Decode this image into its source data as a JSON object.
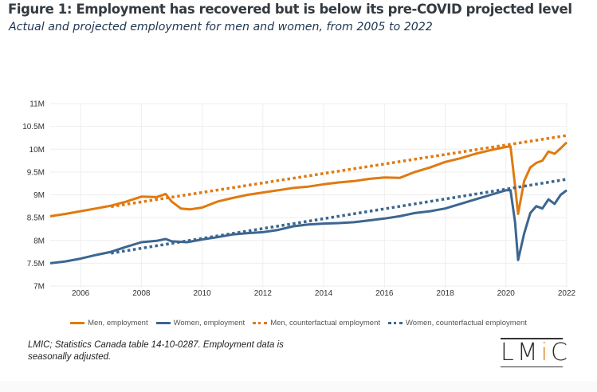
{
  "header": {
    "title": "Figure 1: Employment has recovered but is below its pre-COVID projected level",
    "subtitle": "Actual and projected employment for men and women, from 2005 to 2022"
  },
  "footer": {
    "source": "LMIC; Statistics Canada table 14-10-0287. Employment data is seasonally adjusted.",
    "logo": {
      "l": "LM",
      "i": "i",
      "c": "C"
    }
  },
  "colors": {
    "men": "#e07a10",
    "women": "#3c6690",
    "grid": "#eeeeee"
  },
  "chart_data": {
    "type": "line",
    "title": "Figure 1: Employment has recovered but is below its pre-COVID projected level",
    "subtitle": "Actual and projected employment for men and women, from 2005 to 2022",
    "xlabel": "",
    "ylabel": "",
    "xlim": [
      2005,
      2022
    ],
    "ylim": [
      7000000,
      11000000
    ],
    "x_ticks": [
      "2006",
      "2008",
      "2010",
      "2012",
      "2014",
      "2016",
      "2018",
      "2020",
      "2022"
    ],
    "y_ticks": [
      "7M",
      "7.5M",
      "8M",
      "8.5M",
      "9M",
      "9.5M",
      "10M",
      "10.5M",
      "11M"
    ],
    "grid": true,
    "legend_position": "bottom",
    "series": [
      {
        "name": "Men, employment",
        "style": "solid",
        "color": "#e07a10",
        "x": [
          2005.0,
          2005.5,
          2006.0,
          2006.5,
          2007.0,
          2007.5,
          2008.0,
          2008.5,
          2008.8,
          2009.0,
          2009.3,
          2009.6,
          2010.0,
          2010.5,
          2011.0,
          2011.5,
          2012.0,
          2012.5,
          2013.0,
          2013.5,
          2014.0,
          2014.5,
          2015.0,
          2015.5,
          2016.0,
          2016.5,
          2017.0,
          2017.5,
          2018.0,
          2018.5,
          2019.0,
          2019.5,
          2020.0,
          2020.15,
          2020.3,
          2020.4,
          2020.6,
          2020.8,
          2021.0,
          2021.2,
          2021.4,
          2021.6,
          2021.8,
          2022.0
        ],
        "values": [
          8530000,
          8580000,
          8640000,
          8700000,
          8760000,
          8850000,
          8960000,
          8950000,
          9020000,
          8850000,
          8700000,
          8680000,
          8720000,
          8850000,
          8930000,
          9000000,
          9050000,
          9100000,
          9150000,
          9180000,
          9230000,
          9270000,
          9300000,
          9350000,
          9380000,
          9370000,
          9500000,
          9600000,
          9720000,
          9800000,
          9900000,
          9980000,
          10050000,
          10060000,
          9200000,
          8580000,
          9300000,
          9600000,
          9700000,
          9750000,
          9950000,
          9900000,
          10020000,
          10150000
        ]
      },
      {
        "name": "Women, employment",
        "style": "solid",
        "color": "#3c6690",
        "x": [
          2005.0,
          2005.5,
          2006.0,
          2006.5,
          2007.0,
          2007.5,
          2008.0,
          2008.5,
          2008.8,
          2009.0,
          2009.5,
          2010.0,
          2010.5,
          2011.0,
          2011.5,
          2012.0,
          2012.5,
          2013.0,
          2013.5,
          2014.0,
          2014.5,
          2015.0,
          2015.5,
          2016.0,
          2016.5,
          2017.0,
          2017.5,
          2018.0,
          2018.5,
          2019.0,
          2019.5,
          2020.0,
          2020.15,
          2020.3,
          2020.4,
          2020.6,
          2020.8,
          2021.0,
          2021.2,
          2021.4,
          2021.6,
          2021.8,
          2022.0
        ],
        "values": [
          7500000,
          7540000,
          7600000,
          7680000,
          7750000,
          7860000,
          7960000,
          7990000,
          8030000,
          7980000,
          7960000,
          8020000,
          8070000,
          8130000,
          8160000,
          8180000,
          8230000,
          8310000,
          8350000,
          8370000,
          8380000,
          8400000,
          8440000,
          8480000,
          8530000,
          8600000,
          8640000,
          8700000,
          8800000,
          8900000,
          9000000,
          9100000,
          9100000,
          8400000,
          7570000,
          8150000,
          8600000,
          8750000,
          8700000,
          8900000,
          8800000,
          9000000,
          9100000
        ]
      },
      {
        "name": "Men, counterfactual employment",
        "style": "dotted",
        "color": "#e07a10",
        "x": [
          2007.0,
          2022.0
        ],
        "values": [
          8740000,
          10300000
        ]
      },
      {
        "name": "Women, counterfactual employment",
        "style": "dotted",
        "color": "#3c6690",
        "x": [
          2007.0,
          2022.0
        ],
        "values": [
          7720000,
          9340000
        ]
      }
    ]
  },
  "legend": [
    {
      "label": "Men, employment",
      "style": "solid",
      "color": "#e07a10"
    },
    {
      "label": "Women, employment",
      "style": "solid",
      "color": "#3c6690"
    },
    {
      "label": "Men, counterfactual employment",
      "style": "dotted",
      "color": "#e07a10"
    },
    {
      "label": "Women, counterfactual employment",
      "style": "dotted",
      "color": "#3c6690"
    }
  ]
}
